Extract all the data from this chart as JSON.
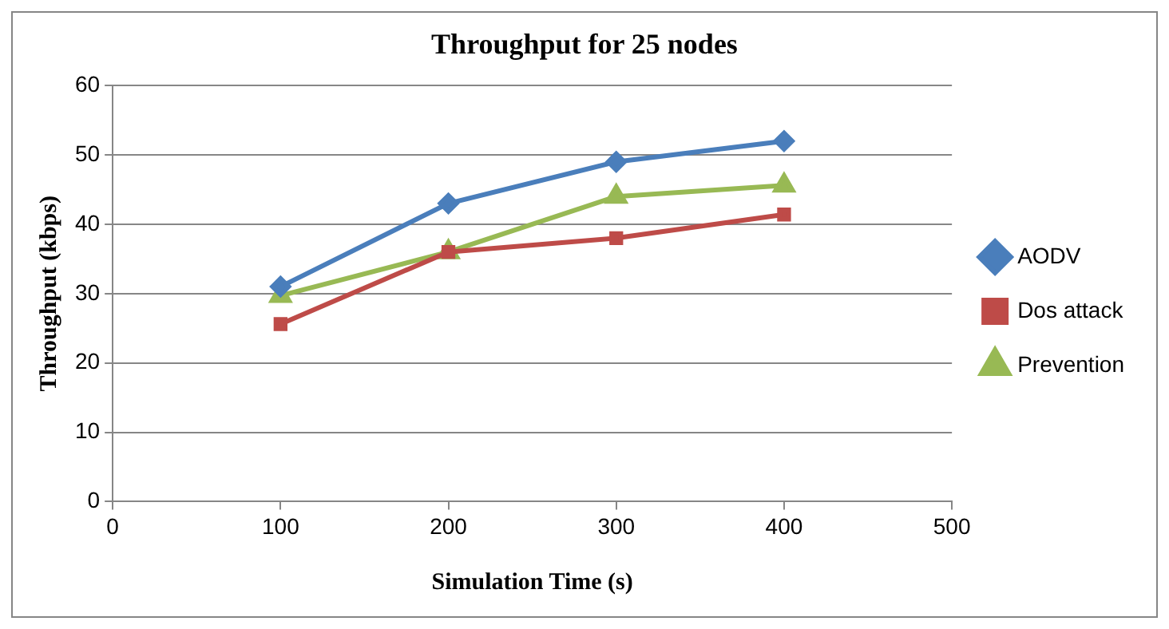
{
  "chart_data": {
    "type": "line",
    "title": "Throughput for 25 nodes",
    "xlabel": "Simulation Time (s)",
    "ylabel": "Throughput (kbps)",
    "x": [
      100,
      200,
      300,
      400
    ],
    "xlim": [
      0,
      500
    ],
    "xticks": [
      0,
      100,
      200,
      300,
      400,
      500
    ],
    "ylim": [
      0,
      60
    ],
    "yticks": [
      0,
      10,
      20,
      30,
      40,
      50,
      60
    ],
    "grid": "y",
    "legend": "right",
    "series": [
      {
        "name": "AODV",
        "color": "#4a7ebb",
        "marker": "diamond",
        "values": [
          31,
          43,
          49,
          52
        ]
      },
      {
        "name": "Dos attack",
        "color": "#be4b48",
        "marker": "square",
        "values": [
          25.6,
          36,
          38,
          41.4
        ]
      },
      {
        "name": "Prevention",
        "color": "#98b954",
        "marker": "triangle",
        "values": [
          29.7,
          36,
          44,
          45.6
        ]
      }
    ]
  }
}
